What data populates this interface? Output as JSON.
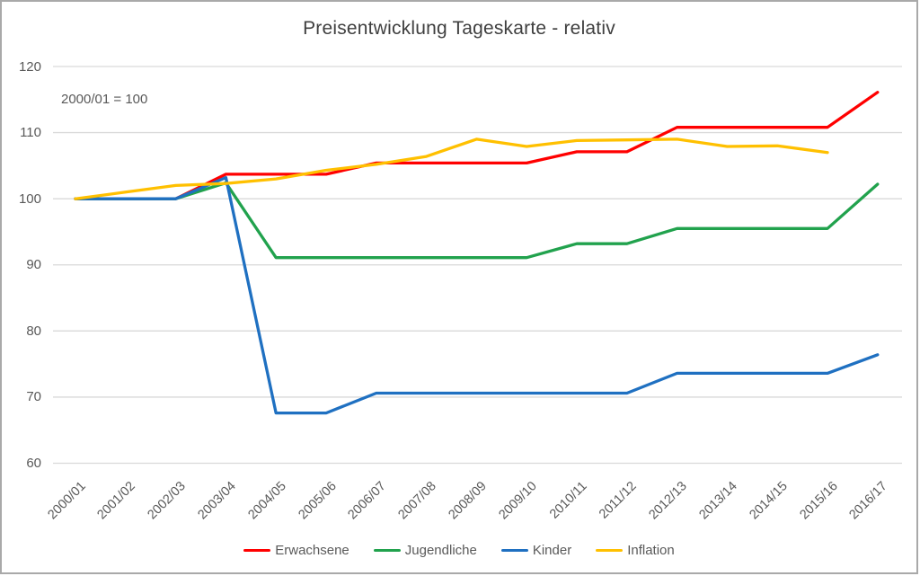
{
  "chart_data": {
    "type": "line",
    "title": "Preisentwicklung Tageskarte - relativ",
    "note": "2000/01 = 100",
    "categories": [
      "2000/01",
      "2001/02",
      "2002/03",
      "2003/04",
      "2004/05",
      "2005/06",
      "2006/07",
      "2007/08",
      "2008/09",
      "2009/10",
      "2010/11",
      "2011/12",
      "2012/13",
      "2013/14",
      "2014/15",
      "2015/16",
      "2016/17"
    ],
    "series": [
      {
        "name": "Erwachsene",
        "color": "#ff0000",
        "values": [
          100,
          100,
          100,
          103.7,
          103.7,
          103.7,
          105.4,
          105.4,
          105.4,
          105.4,
          107.1,
          107.1,
          110.8,
          110.8,
          110.8,
          110.8,
          116.1
        ]
      },
      {
        "name": "Jugendliche",
        "color": "#21a24d",
        "values": [
          100,
          100,
          100,
          102.4,
          91.1,
          91.1,
          91.1,
          91.1,
          91.1,
          91.1,
          93.2,
          93.2,
          95.5,
          95.5,
          95.5,
          95.5,
          102.2
        ]
      },
      {
        "name": "Kinder",
        "color": "#1f70c1",
        "values": [
          100,
          100,
          100,
          103.2,
          67.6,
          67.6,
          70.6,
          70.6,
          70.6,
          70.6,
          70.6,
          70.6,
          73.6,
          73.6,
          73.6,
          73.6,
          76.4
        ]
      },
      {
        "name": "Inflation",
        "color": "#ffc000",
        "values": [
          100,
          101,
          102,
          102.3,
          103,
          104.3,
          105.2,
          106.4,
          109,
          107.9,
          108.8,
          108.9,
          109,
          107.9,
          108,
          107,
          null
        ]
      }
    ],
    "y_ticks": [
      120,
      110,
      100,
      90,
      80,
      70,
      60
    ],
    "ylim": [
      60,
      120
    ],
    "grid": "horizontal",
    "legend_position": "bottom",
    "colors": {
      "gridline": "#d9d9d9",
      "axis_text": "#595959",
      "title_text": "#3f3f3f",
      "frame_border": "#a9a9a9"
    }
  }
}
